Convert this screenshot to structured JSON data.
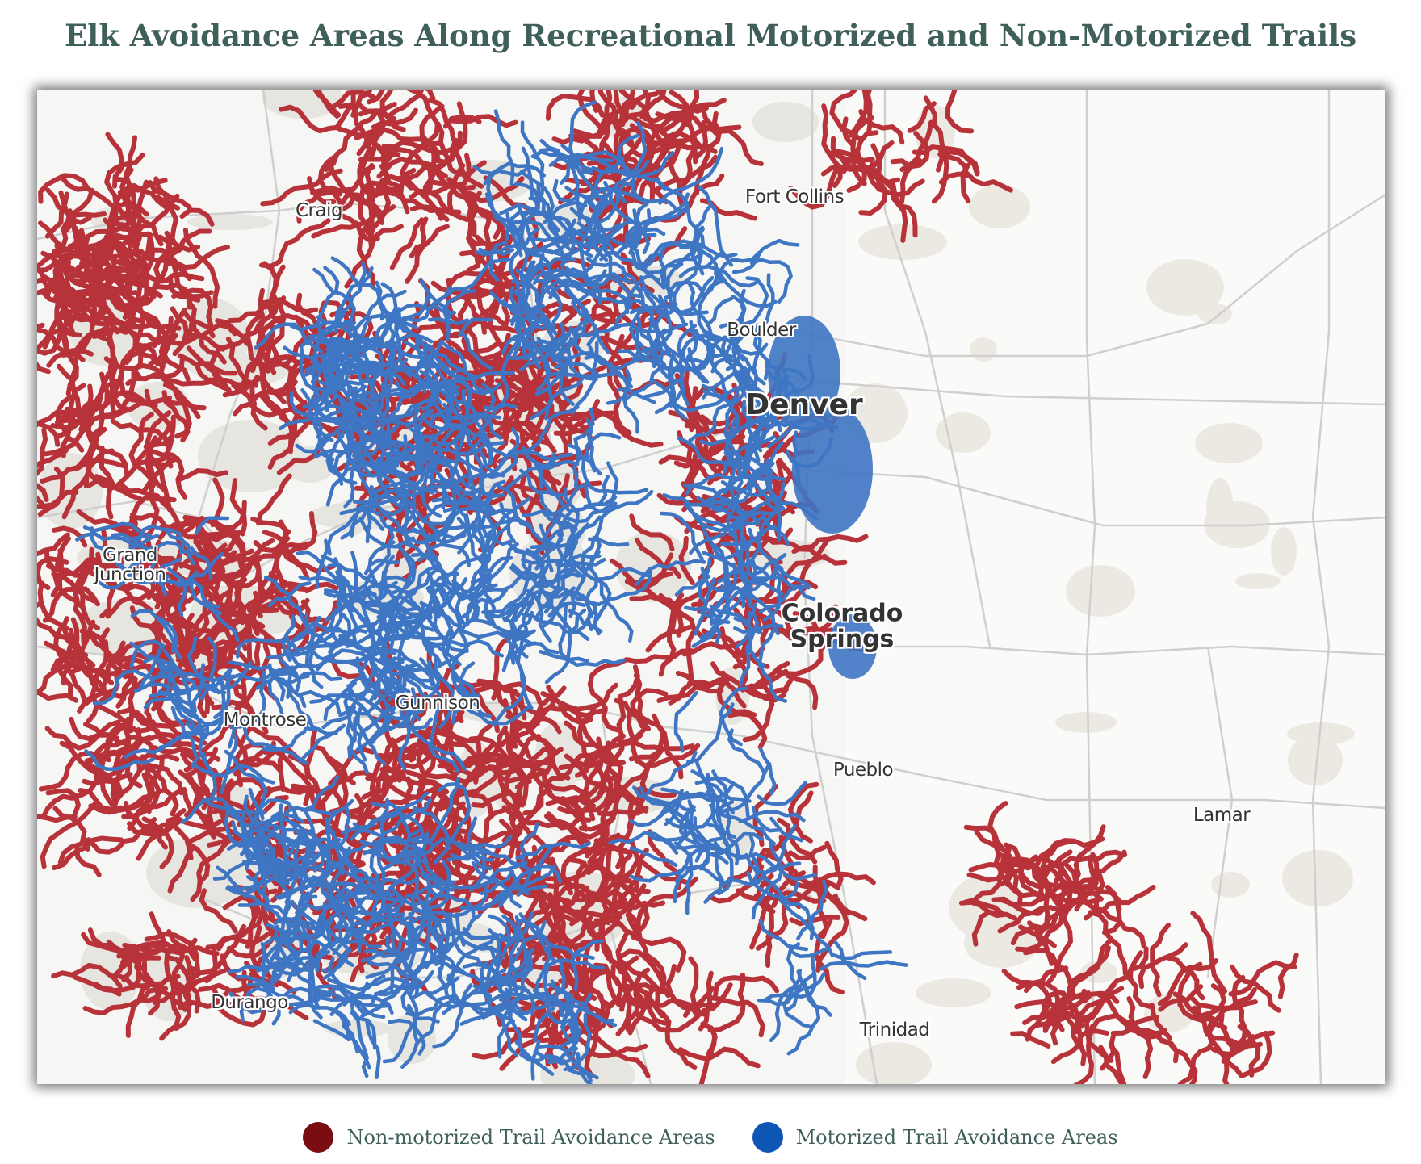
{
  "title": "Elk Avoidance Areas Along Recreational Motorized and Non-Motorized Trails",
  "colors": {
    "non_motorized": "#b8323a",
    "motorized": "#3f76c4",
    "legend_non_motorized": "#7a0d12",
    "legend_motorized": "#0d56b4",
    "background": "#f6f6f4",
    "roads": "#c9c9c9"
  },
  "cities": [
    {
      "name": "Craig",
      "size": "small"
    },
    {
      "name": "Fort Collins",
      "size": "small"
    },
    {
      "name": "Boulder",
      "size": "small"
    },
    {
      "name": "Denver",
      "size": "big"
    },
    {
      "name": "Grand Junction",
      "size": "small"
    },
    {
      "name": "Colorado Springs",
      "size": "med"
    },
    {
      "name": "Gunnison",
      "size": "small"
    },
    {
      "name": "Montrose",
      "size": "small"
    },
    {
      "name": "Pueblo",
      "size": "small"
    },
    {
      "name": "Lamar",
      "size": "small"
    },
    {
      "name": "Durango",
      "size": "small"
    },
    {
      "name": "Trinidad",
      "size": "small"
    }
  ],
  "legend": [
    {
      "label": "Non-motorized Trail Avoidance Areas",
      "color_key": "legend_non_motorized"
    },
    {
      "label": "Motorized Trail Avoidance Areas",
      "color_key": "legend_motorized"
    }
  ]
}
